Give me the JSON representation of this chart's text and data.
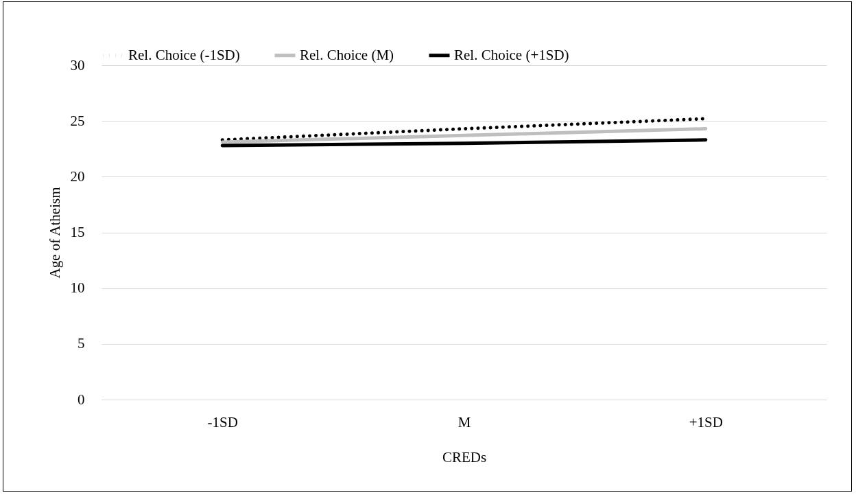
{
  "chart_data": {
    "type": "line",
    "xlabel": "CREDs",
    "ylabel": "Age of Atheism",
    "categories": [
      "-1SD",
      "M",
      "+1SD"
    ],
    "series": [
      {
        "name": "Rel. Choice (-1SD)",
        "color": "#000000",
        "line_style": "dotted",
        "values": [
          23.3,
          24.3,
          25.2
        ]
      },
      {
        "name": "Rel. Choice (M)",
        "color": "#bfbfbf",
        "line_style": "solid",
        "values": [
          23.1,
          23.7,
          24.3
        ]
      },
      {
        "name": "Rel. Choice (+1SD)",
        "color": "#000000",
        "line_style": "solid",
        "values": [
          22.8,
          23.0,
          23.3
        ]
      }
    ],
    "ylim": [
      0,
      30
    ],
    "yticks": [
      0,
      5,
      10,
      15,
      20,
      25,
      30
    ],
    "grid": "y",
    "legend": "top",
    "marker": "none"
  }
}
